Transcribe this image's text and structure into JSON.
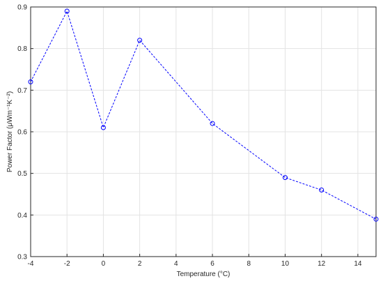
{
  "chart_data": {
    "type": "line",
    "title": "",
    "xlabel": "Temperature (°C)",
    "ylabel": "Power Factor (μWm⁻¹K⁻²)",
    "xlim": [
      -4,
      15
    ],
    "ylim": [
      0.3,
      0.9
    ],
    "x_ticks": [
      -4,
      -2,
      0,
      2,
      4,
      6,
      8,
      10,
      12,
      14
    ],
    "y_ticks": [
      0.3,
      0.4,
      0.5,
      0.6,
      0.7,
      0.8,
      0.9
    ],
    "grid": true,
    "series": [
      {
        "line_style": "dashed",
        "marker": "circle",
        "color": "#0000ff",
        "x": [
          -4,
          -2,
          0,
          2,
          6,
          10,
          12,
          15
        ],
        "y": [
          0.72,
          0.89,
          0.61,
          0.82,
          0.62,
          0.49,
          0.46,
          0.39
        ]
      }
    ]
  }
}
